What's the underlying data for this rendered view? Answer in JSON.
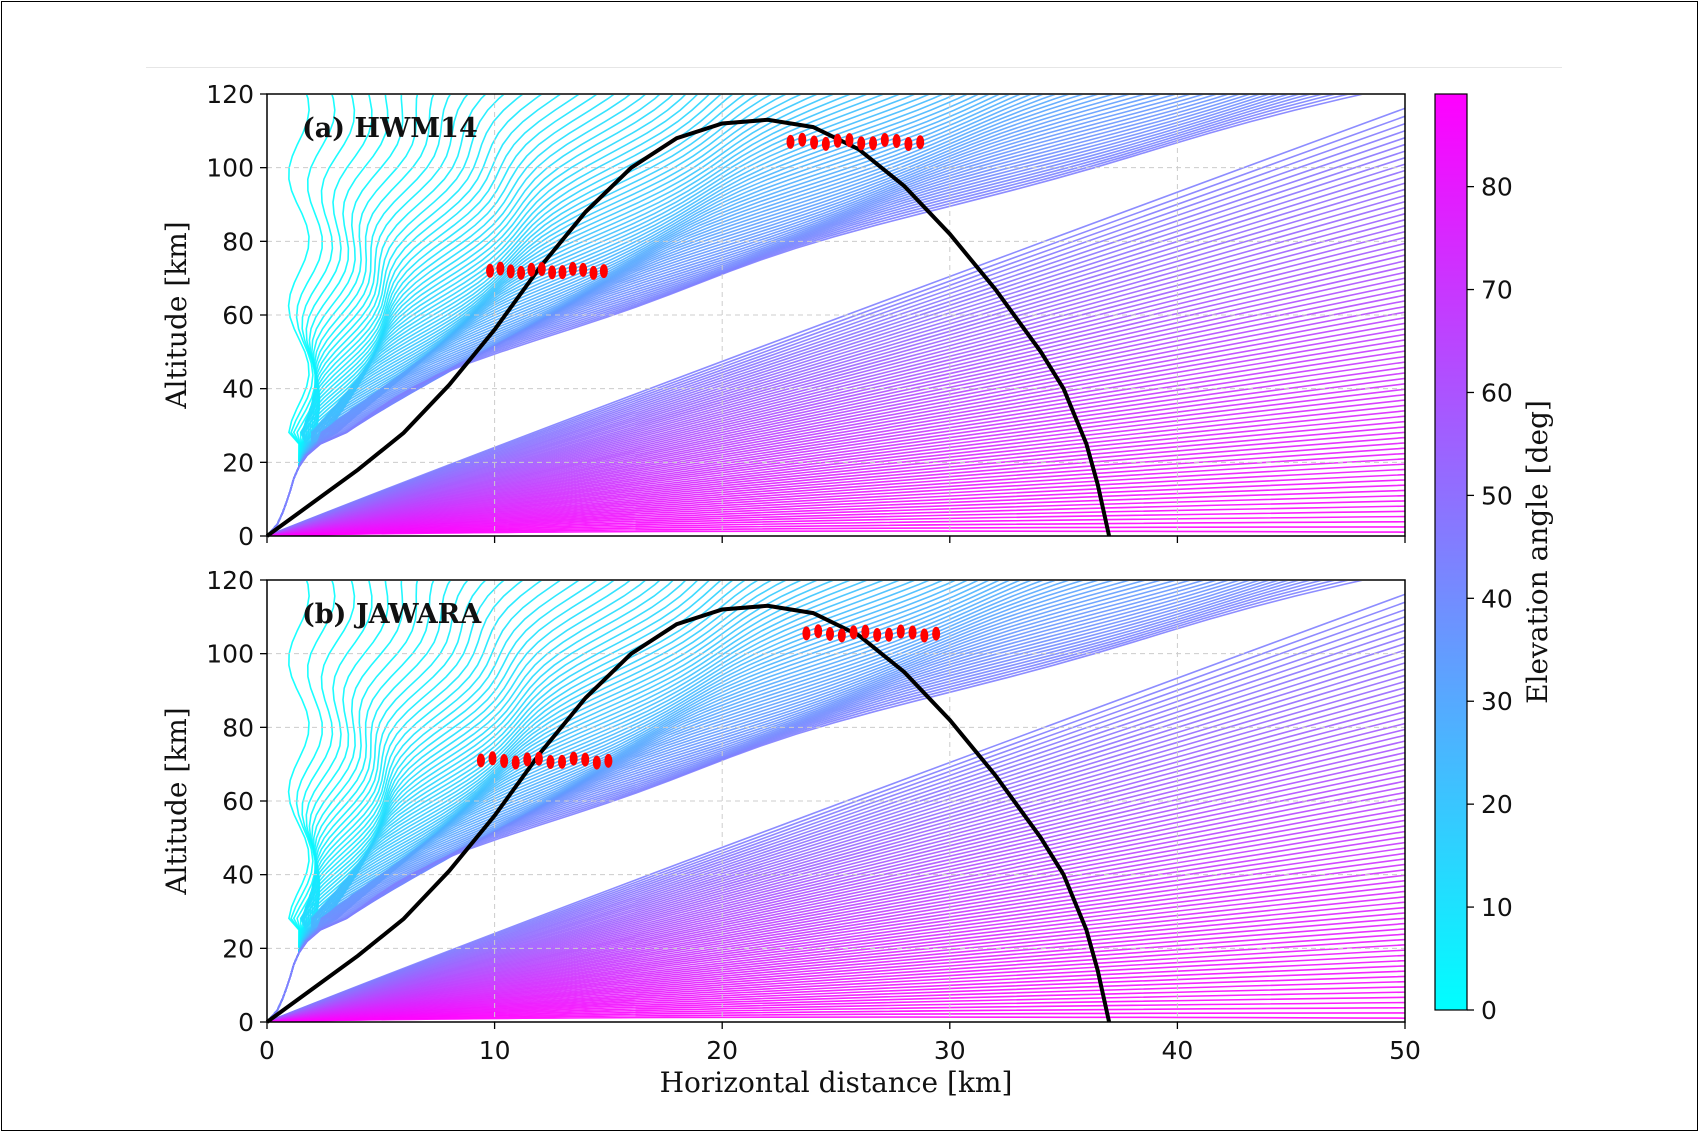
{
  "chart_data": [
    {
      "type": "line",
      "panel_label": "(a) HWM14",
      "xlabel": "",
      "ylabel": "Altitude [km]",
      "xlim": [
        0,
        50
      ],
      "ylim": [
        0,
        120
      ],
      "xticks": [
        "0",
        "10",
        "20",
        "30",
        "40",
        "50"
      ],
      "yticks": [
        "0",
        "20",
        "40",
        "60",
        "80",
        "100",
        "120"
      ],
      "grid": true,
      "ray_family": {
        "description": "acoustic ray paths colored by launch elevation angle",
        "angle_range_deg": [
          0,
          89
        ]
      },
      "highlighted_ray": {
        "name": "black ray",
        "x": [
          0,
          2,
          4,
          6,
          8,
          10,
          12,
          14,
          16,
          18,
          20,
          22,
          24,
          26,
          28,
          30,
          32,
          34,
          35,
          36,
          36.5,
          37
        ],
        "y": [
          0,
          9,
          18,
          28,
          41,
          56,
          73,
          88,
          100,
          108,
          112,
          113,
          111,
          105,
          95,
          82,
          67,
          50,
          40,
          25,
          14,
          0
        ]
      },
      "marker_clusters": [
        {
          "x_range": [
            9.8,
            14.8
          ],
          "y": 72
        },
        {
          "x_range": [
            23.0,
            28.7
          ],
          "y": 107
        }
      ]
    },
    {
      "type": "line",
      "panel_label": "(b) JAWARA",
      "xlabel": "Horizontal distance [km]",
      "ylabel": "Altitude [km]",
      "xlim": [
        0,
        50
      ],
      "ylim": [
        0,
        120
      ],
      "xticks": [
        "0",
        "10",
        "20",
        "30",
        "40",
        "50"
      ],
      "yticks": [
        "0",
        "20",
        "40",
        "60",
        "80",
        "100",
        "120"
      ],
      "grid": true,
      "ray_family": {
        "description": "acoustic ray paths colored by launch elevation angle",
        "angle_range_deg": [
          0,
          89
        ]
      },
      "highlighted_ray": {
        "name": "black ray",
        "x": [
          0,
          2,
          4,
          6,
          8,
          10,
          12,
          14,
          16,
          18,
          20,
          22,
          24,
          26,
          28,
          30,
          32,
          34,
          35,
          36,
          36.5,
          37
        ],
        "y": [
          0,
          9,
          18,
          28,
          41,
          56,
          73,
          88,
          100,
          108,
          112,
          113,
          111,
          105,
          95,
          82,
          67,
          50,
          40,
          25,
          14,
          0
        ]
      },
      "marker_clusters": [
        {
          "x_range": [
            9.4,
            15.0
          ],
          "y": 71
        },
        {
          "x_range": [
            23.7,
            29.4
          ],
          "y": 105.5
        }
      ]
    }
  ],
  "colorbar": {
    "label": "Elevation angle [deg]",
    "range": [
      0,
      89
    ],
    "ticks": [
      "0",
      "10",
      "20",
      "30",
      "40",
      "50",
      "60",
      "70",
      "80"
    ],
    "colormap": "cool",
    "color_low": "#00ffff",
    "color_high": "#ff00ff"
  },
  "colors": {
    "ray_line": "#000000",
    "marker": "#ff0000",
    "grid": "#cccccc"
  }
}
